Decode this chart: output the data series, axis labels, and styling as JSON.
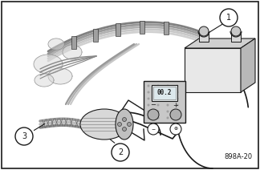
{
  "background_color": "#ffffff",
  "border_color": "#000000",
  "label1": "1",
  "label2": "2",
  "label3": "3",
  "part_number": "898A-20",
  "figsize": [
    3.24,
    2.12
  ],
  "dpi": 100,
  "lc": "#1a1a1a",
  "gray_light": "#e0e0e0",
  "gray_mid": "#c0c0c0",
  "gray_dark": "#909090",
  "white": "#ffffff",
  "circle_r": 0.038
}
